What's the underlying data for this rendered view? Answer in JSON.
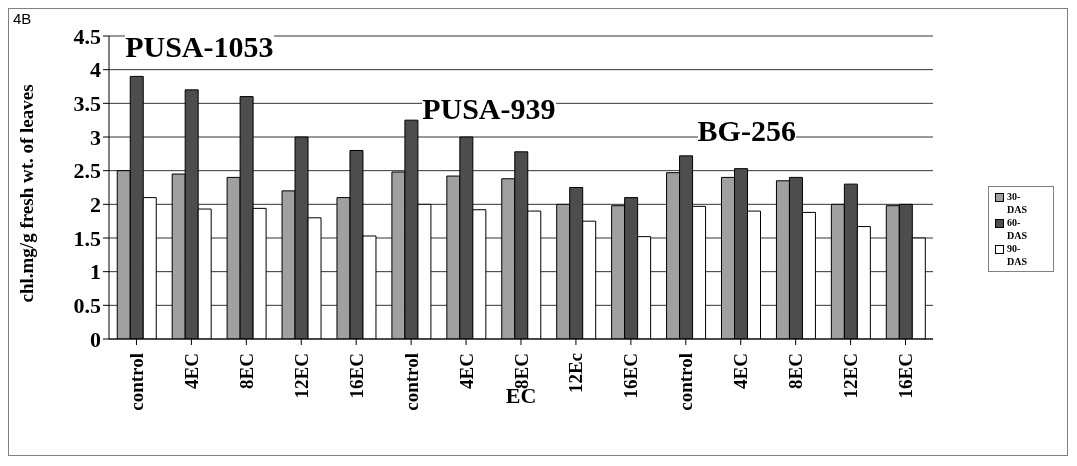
{
  "chart_data": {
    "type": "bar",
    "categories": [
      "control",
      "4EC",
      "8EC",
      "12EC",
      "16EC",
      "control",
      "4EC",
      "8EC",
      "12Ec",
      "16EC",
      "control",
      "4EC",
      "8EC",
      "12EC",
      "16EC"
    ],
    "series": [
      {
        "name": "30-DAS",
        "color": "#a0a0a0",
        "values": [
          2.5,
          2.45,
          2.4,
          2.2,
          2.1,
          2.48,
          2.42,
          2.38,
          2.0,
          1.98,
          2.47,
          2.4,
          2.35,
          2.0,
          1.98
        ]
      },
      {
        "name": "60-DAS",
        "color": "#4d4d4d",
        "values": [
          3.9,
          3.7,
          3.6,
          3.0,
          2.8,
          3.25,
          3.0,
          2.78,
          2.25,
          2.1,
          2.72,
          2.53,
          2.4,
          2.3,
          2.0
        ]
      },
      {
        "name": "90-DAS",
        "color": "#ffffff",
        "values": [
          2.1,
          1.93,
          1.94,
          1.8,
          1.53,
          2.0,
          1.92,
          1.9,
          1.75,
          1.52,
          1.97,
          1.9,
          1.88,
          1.67,
          1.5
        ]
      }
    ],
    "ylim": [
      0,
      4.5
    ],
    "yticks": [
      0,
      0.5,
      1,
      1.5,
      2,
      2.5,
      3,
      3.5,
      4,
      4.5
    ],
    "ylabel": "chl.mg/g fresh wt. of leaves",
    "xlabel": "EC",
    "annotations": [
      "4B",
      "PUSA-1053",
      "PUSA-939",
      "BG-256"
    ],
    "grid": "y",
    "legend": "right"
  }
}
